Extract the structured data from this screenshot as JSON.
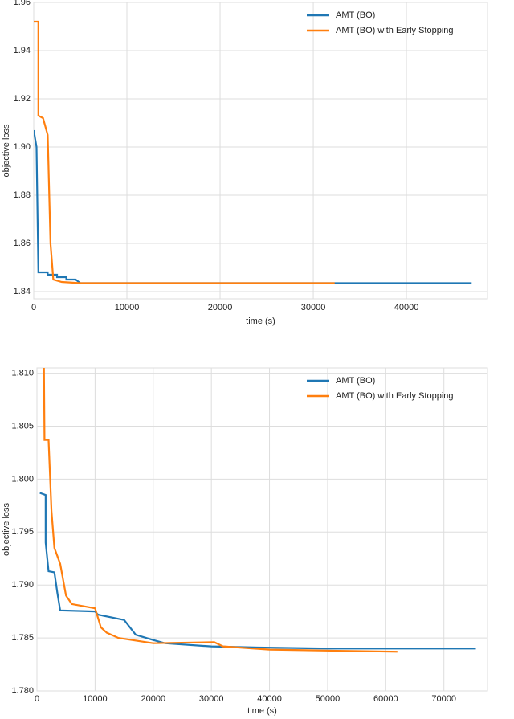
{
  "chart_data": [
    {
      "type": "line",
      "xlabel": "time (s)",
      "ylabel": "objective loss",
      "xlim": [
        0,
        48700
      ],
      "ylim": [
        1.837,
        1.96
      ],
      "xticks": [
        0,
        10000,
        20000,
        30000,
        40000
      ],
      "yticks": [
        1.84,
        1.86,
        1.88,
        {
          "value": 1.9,
          "label": "1.90"
        },
        1.92,
        1.94,
        1.96
      ],
      "grid": true,
      "legend": "upper right",
      "series": [
        {
          "name": "AMT (BO)",
          "color": "#1f77b4",
          "x": [
            0,
            300,
            500,
            1500,
            1500,
            2500,
            2500,
            3500,
            3500,
            4500,
            5000,
            47000
          ],
          "values": [
            1.907,
            1.9,
            1.848,
            1.848,
            1.847,
            1.847,
            1.846,
            1.846,
            1.845,
            1.845,
            1.8435,
            1.8435
          ]
        },
        {
          "name": "AMT (BO) with Early Stopping",
          "color": "#ff7f0e",
          "x": [
            0,
            500,
            500,
            1000,
            1500,
            1800,
            2100,
            3000,
            5000,
            32300
          ],
          "values": [
            1.952,
            1.952,
            1.913,
            1.912,
            1.905,
            1.86,
            1.845,
            1.844,
            1.8435,
            1.8435
          ]
        }
      ]
    },
    {
      "type": "line",
      "xlabel": "time (s)",
      "ylabel": "objective loss",
      "xlim": [
        0,
        77500
      ],
      "ylim": [
        1.78,
        1.8105
      ],
      "xticks": [
        0,
        10000,
        20000,
        30000,
        40000,
        50000,
        60000,
        70000
      ],
      "yticks": [
        {
          "value": 1.78,
          "label": "1.780"
        },
        1.785,
        {
          "value": 1.79,
          "label": "1.790"
        },
        1.795,
        {
          "value": 1.8,
          "label": "1.800"
        },
        1.805,
        {
          "value": 1.81,
          "label": "1.810"
        }
      ],
      "grid": true,
      "legend": "upper right",
      "series": [
        {
          "name": "AMT (BO)",
          "color": "#1f77b4",
          "x": [
            500,
            1500,
            1500,
            2000,
            3000,
            3500,
            4000,
            10000,
            10500,
            15000,
            16000,
            17000,
            20000,
            22000,
            30000,
            38000,
            50000,
            75500
          ],
          "values": [
            1.7987,
            1.7985,
            1.794,
            1.7913,
            1.7912,
            1.7893,
            1.7876,
            1.7875,
            1.7872,
            1.7867,
            1.786,
            1.7853,
            1.7848,
            1.7845,
            1.7842,
            1.7841,
            1.784,
            1.784
          ]
        },
        {
          "name": "AMT (BO) with Early Stopping",
          "color": "#ff7f0e",
          "x": [
            1200,
            1300,
            2000,
            2500,
            3000,
            4000,
            5000,
            6000,
            8000,
            10000,
            11000,
            12000,
            14000,
            20000,
            30500,
            32000,
            40000,
            50500,
            62000
          ],
          "values": [
            1.811,
            1.8037,
            1.8037,
            1.797,
            1.7935,
            1.792,
            1.789,
            1.7882,
            1.788,
            1.7878,
            1.786,
            1.7855,
            1.785,
            1.7845,
            1.7846,
            1.7842,
            1.7839,
            1.7838,
            1.7837
          ]
        }
      ]
    }
  ]
}
